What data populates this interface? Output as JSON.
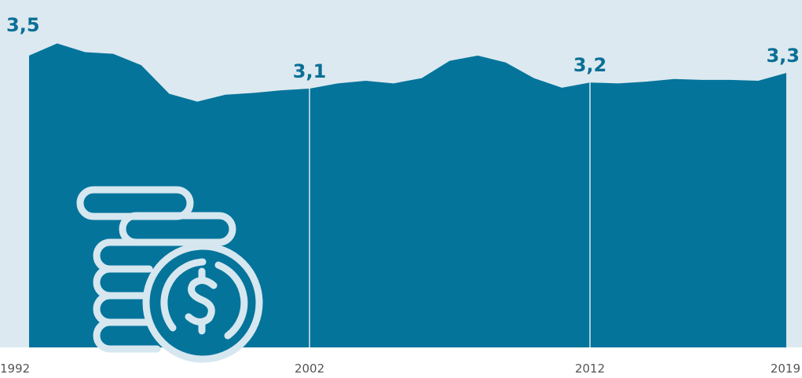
{
  "chart_data": {
    "type": "area",
    "x": [
      1992,
      1993,
      1994,
      1995,
      1996,
      1997,
      1998,
      1999,
      2000,
      2001,
      2002,
      2003,
      2004,
      2005,
      2006,
      2007,
      2008,
      2009,
      2010,
      2011,
      2012,
      2013,
      2014,
      2015,
      2016,
      2017,
      2018,
      2019
    ],
    "values": [
      3.46,
      3.6,
      3.5,
      3.48,
      3.35,
      3.02,
      2.93,
      3.01,
      3.03,
      3.06,
      3.08,
      3.14,
      3.17,
      3.14,
      3.2,
      3.4,
      3.46,
      3.38,
      3.2,
      3.09,
      3.15,
      3.14,
      3.16,
      3.19,
      3.18,
      3.18,
      3.17,
      3.26
    ],
    "value_labels": [
      "3,5",
      null,
      null,
      null,
      null,
      null,
      null,
      null,
      null,
      null,
      "3,1",
      null,
      null,
      null,
      null,
      null,
      null,
      null,
      null,
      null,
      "3,2",
      null,
      null,
      null,
      null,
      null,
      null,
      "3,3"
    ],
    "color": "#04749b",
    "xlim": [
      1992,
      2019
    ],
    "xticks": [
      1992,
      2002,
      2012,
      2019
    ],
    "ylim": [
      0.1,
      4.1
    ]
  }
}
